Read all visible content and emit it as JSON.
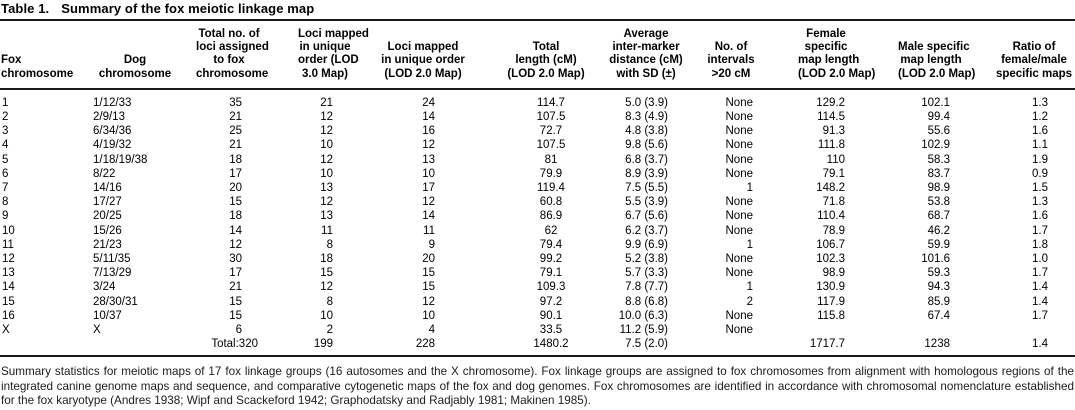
{
  "table": {
    "title_label": "Table 1.",
    "title": "Summary of the fox meiotic linkage map",
    "columns": [
      {
        "id": "fox-chromosome",
        "lines": [
          "Fox",
          "chromosome"
        ]
      },
      {
        "id": "dog-chromosome",
        "lines": [
          "Dog",
          "chromosome"
        ]
      },
      {
        "id": "total-loci-assigned",
        "lines": [
          "Total no. of",
          "loci assigned",
          "to fox",
          "chromosome"
        ]
      },
      {
        "id": "loci-unique-order-lod3",
        "lines": [
          "Loci mapped",
          "in unique",
          "order (LOD",
          "3.0 Map)"
        ]
      },
      {
        "id": "loci-unique-order-lod2",
        "lines": [
          "Loci mapped",
          "in unique order",
          "(LOD 2.0 Map)"
        ]
      },
      {
        "id": "total-length",
        "lines": [
          "Total",
          "length (cM)",
          "(LOD 2.0 Map)"
        ]
      },
      {
        "id": "avg-intermarker-distance",
        "lines": [
          "Average",
          "inter-marker",
          "distance (cM)",
          "with SD (±)"
        ]
      },
      {
        "id": "intervals-gt-20cm",
        "lines": [
          "No. of",
          "intervals",
          ">20 cM"
        ]
      },
      {
        "id": "female-map-length",
        "lines": [
          "Female",
          "specific",
          "map length",
          "(LOD 2.0 Map)"
        ]
      },
      {
        "id": "male-map-length",
        "lines": [
          "Male specific",
          "map length",
          "(LOD 2.0 Map)"
        ]
      },
      {
        "id": "ratio-female-male",
        "lines": [
          "Ratio of",
          "female/male",
          "specific maps"
        ]
      }
    ],
    "rows": [
      [
        "1",
        "1/12/33",
        "35",
        "21",
        "24",
        "114.7",
        "5.0 (3.9)",
        "None",
        "129.2",
        "102.1",
        "1.3"
      ],
      [
        "2",
        "2/9/13",
        "21",
        "12",
        "14",
        "107.5",
        "8.3 (4.9)",
        "None",
        "114.5",
        "99.4",
        "1.2"
      ],
      [
        "3",
        "6/34/36",
        "25",
        "12",
        "16",
        "72.7",
        "4.8 (3.8)",
        "None",
        "91.3",
        "55.6",
        "1.6"
      ],
      [
        "4",
        "4/19/32",
        "21",
        "10",
        "12",
        "107.5",
        "9.8 (5.6)",
        "None",
        "111.8",
        "102.9",
        "1.1"
      ],
      [
        "5",
        "1/18/19/38",
        "18",
        "12",
        "13",
        "81",
        "6.8 (3.7)",
        "None",
        "110",
        "58.3",
        "1.9"
      ],
      [
        "6",
        "8/22",
        "17",
        "10",
        "10",
        "79.9",
        "8.9 (3.9)",
        "None",
        "79.1",
        "83.7",
        "0.9"
      ],
      [
        "7",
        "14/16",
        "20",
        "13",
        "17",
        "119.4",
        "7.5 (5.5)",
        "1",
        "148.2",
        "98.9",
        "1.5"
      ],
      [
        "8",
        "17/27",
        "15",
        "12",
        "12",
        "60.8",
        "5.5 (3.9)",
        "None",
        "71.8",
        "53.8",
        "1.3"
      ],
      [
        "9",
        "20/25",
        "18",
        "13",
        "14",
        "86.9",
        "6.7 (5.6)",
        "None",
        "110.4",
        "68.7",
        "1.6"
      ],
      [
        "10",
        "15/26",
        "14",
        "11",
        "11",
        "62",
        "6.2 (3.7)",
        "None",
        "78.9",
        "46.2",
        "1.7"
      ],
      [
        "11",
        "21/23",
        "12",
        "8",
        "9",
        "79.4",
        "9.9 (6.9)",
        "1",
        "106.7",
        "59.9",
        "1.8"
      ],
      [
        "12",
        "5/11/35",
        "30",
        "18",
        "20",
        "99.2",
        "5.2 (3.8)",
        "None",
        "102.3",
        "101.6",
        "1.0"
      ],
      [
        "13",
        "7/13/29",
        "17",
        "15",
        "15",
        "79.1",
        "5.7 (3.3)",
        "None",
        "98.9",
        "59.3",
        "1.7"
      ],
      [
        "14",
        "3/24",
        "21",
        "12",
        "15",
        "109.3",
        "7.8 (7.7)",
        "1",
        "130.9",
        "94.3",
        "1.4"
      ],
      [
        "15",
        "28/30/31",
        "15",
        "8",
        "12",
        "97.2",
        "8.8 (6.8)",
        "2",
        "117.9",
        "85.9",
        "1.4"
      ],
      [
        "16",
        "10/37",
        "15",
        "10",
        "10",
        "90.1",
        "10.0 (6.3)",
        "None",
        "115.8",
        "67.4",
        "1.7"
      ],
      [
        "X",
        "X",
        "6",
        "2",
        "4",
        "33.5",
        "11.2 (5.9)",
        "None",
        "",
        "",
        ""
      ]
    ],
    "total_row": [
      "",
      "",
      "Total:320",
      "199",
      "228",
      "1480.2",
      "7.5 (2.0)",
      "",
      "1717.7",
      "1238",
      "1.4"
    ],
    "footnote": "Summary statistics for meiotic maps of 17 fox linkage groups (16 autosomes and the X chromosome). Fox linkage groups are assigned to fox chromosomes from alignment with homologous regions of the integrated canine genome maps and sequence, and comparative cytogenetic maps of the fox and dog genomes. Fox chromosomes are identified in accordance with chromosomal nomenclature established for the fox karyotype (Andres 1938; Wipf and Scackeford 1942; Graphodatsky and Radjably 1981; Makinen 1985)."
  }
}
